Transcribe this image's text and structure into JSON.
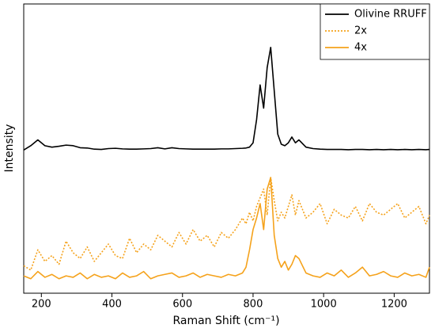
{
  "chart_data": {
    "type": "line",
    "xlabel": "Raman Shift (cm⁻¹)",
    "ylabel": "Intensity",
    "xlim": [
      150,
      1300
    ],
    "ylim": [
      0,
      100
    ],
    "xticks": [
      200,
      400,
      600,
      800,
      1000,
      1200
    ],
    "legend": "upper right",
    "x": [
      150,
      170,
      190,
      210,
      230,
      250,
      270,
      290,
      310,
      330,
      350,
      370,
      390,
      410,
      430,
      450,
      470,
      490,
      510,
      530,
      550,
      570,
      590,
      610,
      630,
      650,
      670,
      690,
      710,
      730,
      750,
      770,
      780,
      790,
      800,
      810,
      820,
      830,
      840,
      850,
      860,
      870,
      880,
      890,
      900,
      910,
      920,
      930,
      950,
      970,
      990,
      1010,
      1030,
      1050,
      1070,
      1090,
      1110,
      1130,
      1150,
      1170,
      1190,
      1210,
      1230,
      1250,
      1270,
      1290,
      1300
    ],
    "series": [
      {
        "name": "Olivine RRUFF",
        "color": "#000000",
        "dash": "solid",
        "values": [
          49.5,
          51,
          53,
          51,
          50.5,
          50.8,
          51.2,
          51,
          50.3,
          50.2,
          49.8,
          49.7,
          50,
          50.1,
          49.9,
          49.8,
          49.8,
          49.9,
          50,
          50.3,
          49.9,
          50.3,
          50,
          49.9,
          49.8,
          49.8,
          49.8,
          49.8,
          49.9,
          49.9,
          50,
          50.1,
          50.2,
          50.5,
          52,
          60,
          72,
          64,
          78,
          85,
          70,
          55,
          51.5,
          51,
          52,
          54,
          52,
          53,
          50.5,
          50,
          49.8,
          49.7,
          49.7,
          49.7,
          49.6,
          49.7,
          49.7,
          49.6,
          49.7,
          49.6,
          49.7,
          49.6,
          49.7,
          49.6,
          49.7,
          49.6,
          49.7
        ]
      },
      {
        "name": "2x",
        "color": "#f5a21b",
        "dash": "dotted",
        "values": [
          9.5,
          8,
          15,
          11,
          13,
          10,
          18,
          14,
          12,
          16,
          11,
          14,
          17,
          13,
          12,
          19,
          14,
          17,
          15,
          20,
          18,
          16,
          21,
          17,
          22,
          18,
          20,
          16,
          21,
          19,
          22,
          26,
          24,
          28,
          25,
          30,
          33,
          36,
          27,
          40,
          32,
          25,
          28,
          26,
          30,
          34,
          27,
          32,
          26,
          28,
          31,
          24,
          29,
          27,
          26,
          30,
          25,
          31,
          28,
          27,
          29,
          31,
          26,
          28,
          30,
          24,
          27
        ]
      },
      {
        "name": "4x",
        "color": "#f5a21b",
        "dash": "solid",
        "values": [
          6,
          5,
          7.5,
          5.5,
          6.5,
          5,
          6,
          5.5,
          7,
          5,
          6.5,
          5.5,
          6,
          5,
          7,
          5.5,
          6,
          7.5,
          5,
          6,
          6.5,
          7,
          5.5,
          6,
          7,
          5.5,
          6.5,
          6,
          5.5,
          6.5,
          6,
          7,
          9,
          15,
          22,
          26,
          31,
          22,
          36,
          40,
          20,
          12,
          9,
          11,
          8,
          10,
          13,
          12,
          7,
          6,
          5.5,
          7,
          6,
          8,
          5.5,
          7,
          9,
          6,
          6.5,
          7.5,
          6,
          5.5,
          7,
          6,
          6.5,
          5.5,
          9
        ]
      }
    ]
  }
}
